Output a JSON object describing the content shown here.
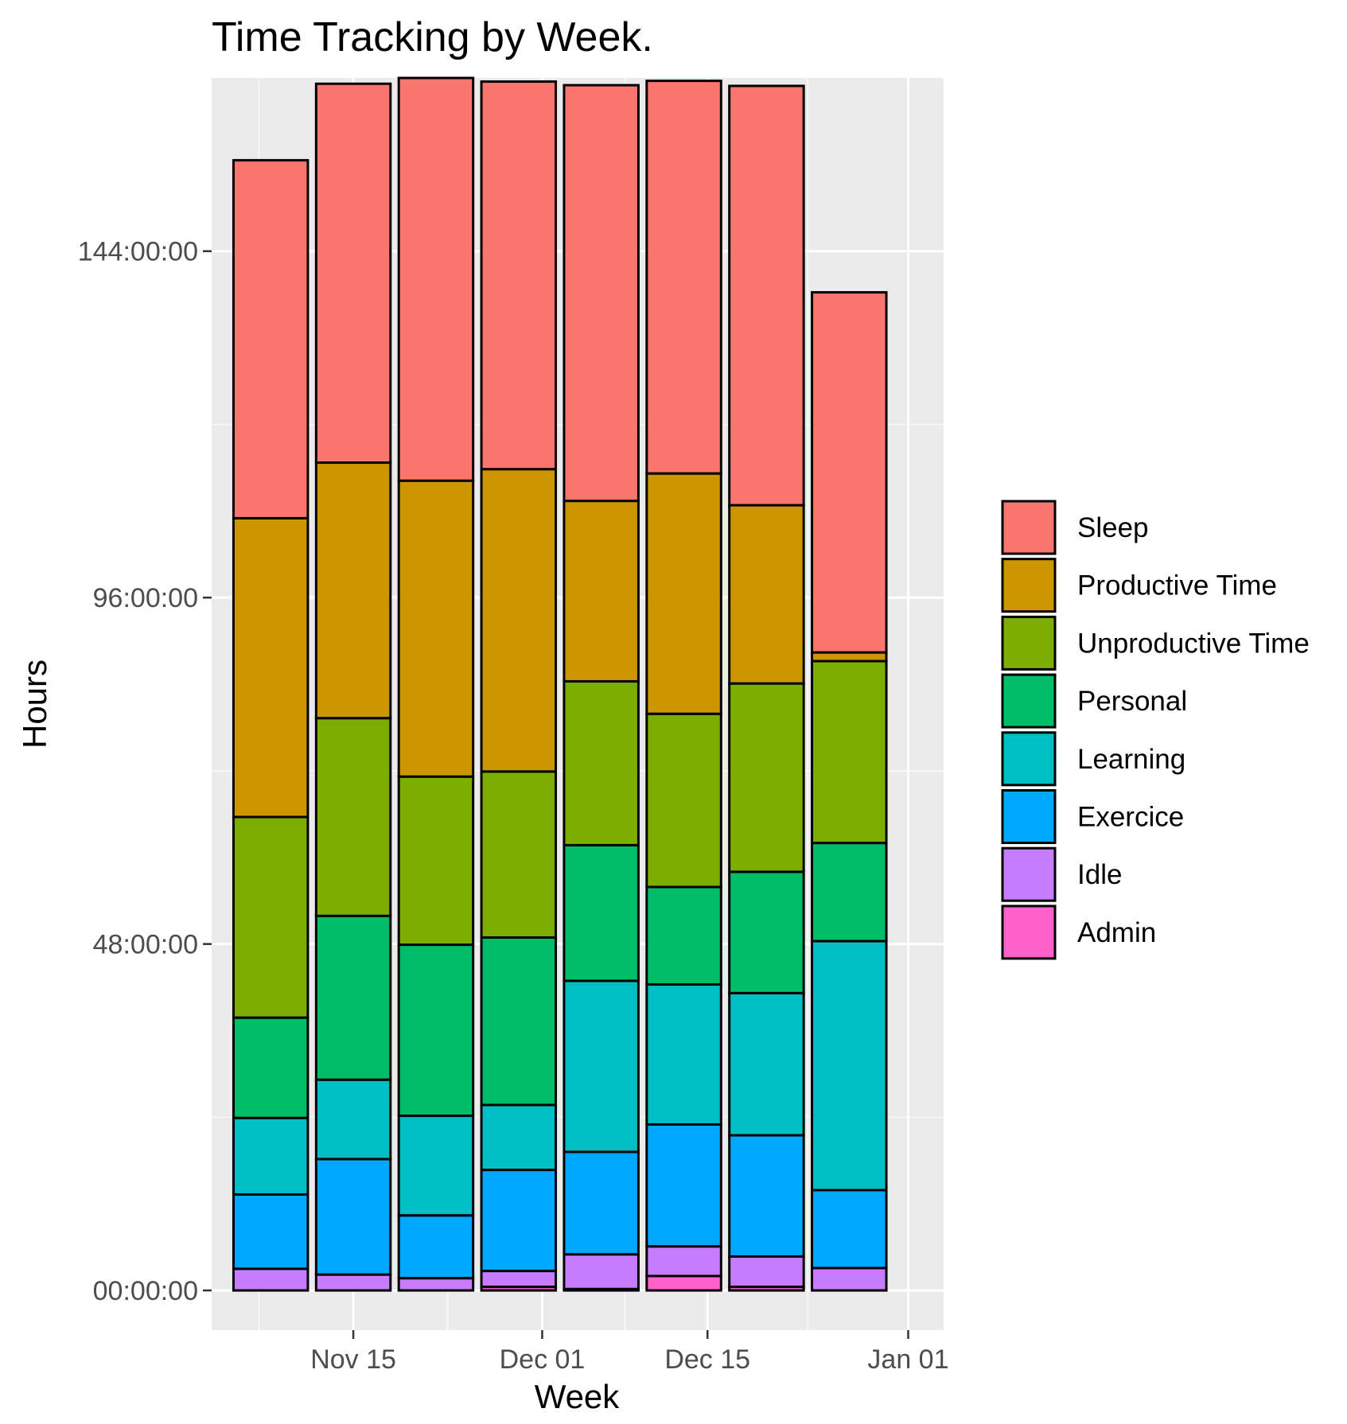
{
  "chart_data": {
    "type": "bar",
    "stacked": true,
    "title": "Time Tracking by Week.",
    "xlabel": "Week",
    "ylabel": "Hours",
    "x_tick_labels": [
      "Nov 15",
      "Dec 01",
      "Dec 15",
      "Jan 01"
    ],
    "x_tick_dates": [
      "2020-11-15",
      "2020-12-01",
      "2020-12-15",
      "2021-01-01"
    ],
    "categories": [
      "2020-11-08",
      "2020-11-15",
      "2020-11-22",
      "2020-11-29",
      "2020-12-06",
      "2020-12-13",
      "2020-12-20",
      "2020-12-27"
    ],
    "x_range": [
      "2020-11-03",
      "2021-01-04"
    ],
    "y_tick_labels": [
      "00:00:00",
      "48:00:00",
      "96:00:00",
      "144:00:00"
    ],
    "y_tick_values": [
      0,
      48,
      96,
      144
    ],
    "ylim": [
      -5.5,
      168
    ],
    "grid": true,
    "legend_position": "right",
    "series": [
      {
        "name": "Admin",
        "color": "#FF61CC",
        "values": [
          0,
          0,
          0,
          0.5,
          0.2,
          2,
          0.5,
          0
        ]
      },
      {
        "name": "Idle",
        "color": "#C77CFF",
        "values": [
          3,
          2.2,
          1.7,
          2.2,
          4.8,
          4.1,
          4.2,
          3.1
        ]
      },
      {
        "name": "Exercice",
        "color": "#00A9FF",
        "values": [
          10.3,
          16,
          8.7,
          14,
          14.2,
          16.9,
          16.8,
          10.8
        ]
      },
      {
        "name": "Learning",
        "color": "#00BFC4",
        "values": [
          10.6,
          11,
          13.8,
          9,
          23.7,
          19.4,
          19.7,
          34.5
        ]
      },
      {
        "name": "Personal",
        "color": "#00BE67",
        "values": [
          13.9,
          22.7,
          23.7,
          23.2,
          18.8,
          13.5,
          16.8,
          13.6
        ]
      },
      {
        "name": "Unproductive Time",
        "color": "#7CAE00",
        "values": [
          27.8,
          27.4,
          23.3,
          23,
          22.7,
          24,
          26.1,
          25.2
        ]
      },
      {
        "name": "Productive Time",
        "color": "#CD9600",
        "values": [
          41.4,
          35.4,
          41,
          41.9,
          25,
          33.3,
          24.7,
          1.2
        ]
      },
      {
        "name": "Sleep",
        "color": "#F8766D",
        "values": [
          49.6,
          52.5,
          55.8,
          53.7,
          57.6,
          54.4,
          58.1,
          49.9
        ]
      }
    ]
  },
  "legend": {
    "items": [
      {
        "label": "Sleep",
        "color": "#F8766D"
      },
      {
        "label": "Productive Time",
        "color": "#CD9600"
      },
      {
        "label": "Unproductive Time",
        "color": "#7CAE00"
      },
      {
        "label": "Personal",
        "color": "#00BE67"
      },
      {
        "label": "Learning",
        "color": "#00BFC4"
      },
      {
        "label": "Exercice",
        "color": "#00A9FF"
      },
      {
        "label": "Idle",
        "color": "#C77CFF"
      },
      {
        "label": "Admin",
        "color": "#FF61CC"
      }
    ]
  },
  "colors": {
    "panel_background": "#EBEBEB",
    "grid_major": "#FFFFFF",
    "grid_minor": "#F5F5F5",
    "bar_outline": "#000000"
  }
}
